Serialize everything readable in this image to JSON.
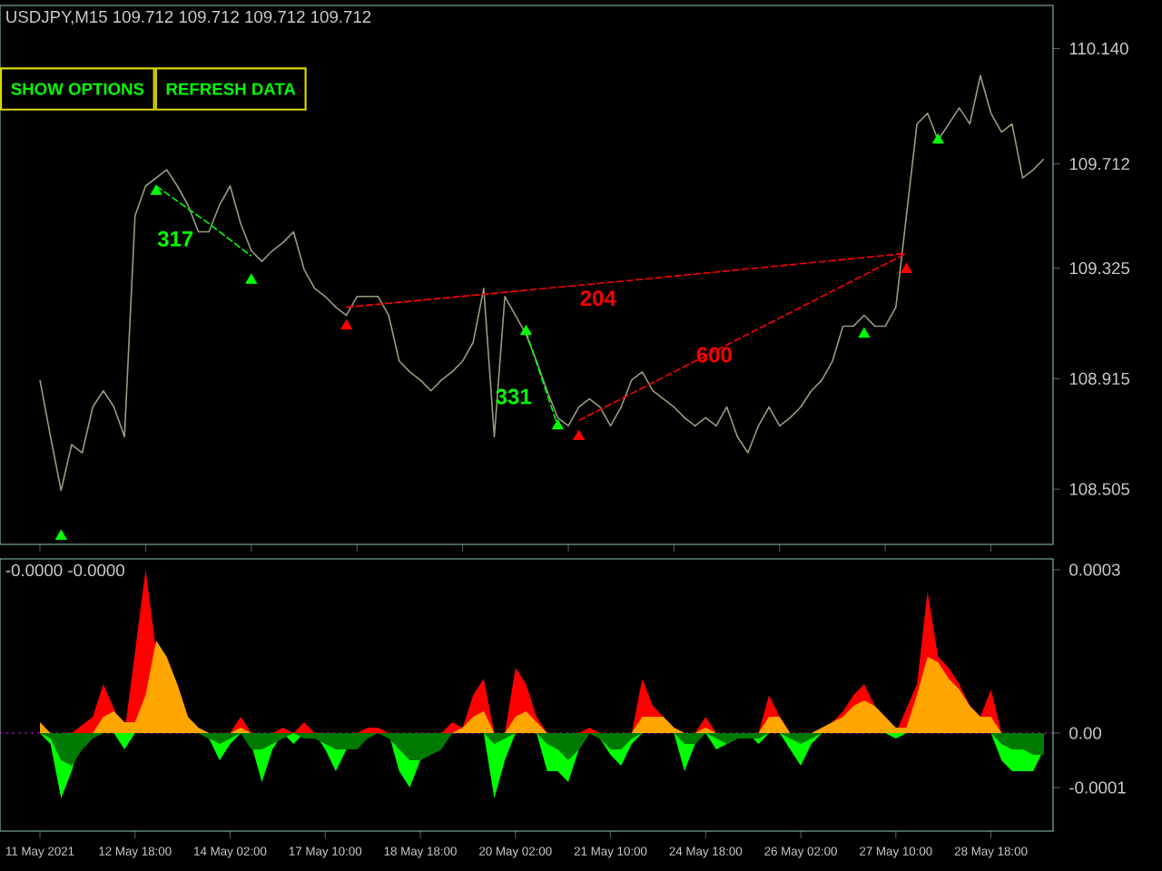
{
  "chart_data": [
    {
      "type": "line",
      "title": "USDJPY,M15  109.712 109.712 109.712 109.712",
      "tick_labels": "y",
      "categories": [
        null,
        null,
        null,
        null,
        null,
        null,
        null,
        null,
        null,
        null,
        null,
        null,
        null,
        null,
        null,
        null,
        null,
        null,
        null,
        null,
        null,
        null,
        null,
        null,
        null,
        null,
        null,
        null,
        null,
        null,
        null,
        null,
        null,
        null,
        null,
        null,
        null,
        null,
        null,
        null,
        null,
        null,
        null,
        null,
        null,
        null,
        null,
        null,
        null,
        null,
        null,
        null,
        null,
        null,
        null,
        null,
        null,
        null,
        null,
        null,
        null,
        null,
        null,
        null,
        null,
        null,
        null,
        null,
        null,
        null,
        null,
        null,
        null,
        null,
        null,
        null,
        null,
        null,
        null,
        null,
        null,
        null,
        null,
        null,
        null,
        null,
        null,
        null,
        null,
        null,
        null,
        null,
        null,
        null,
        null,
        null
      ],
      "ylim": [
        108.3,
        110.3
      ],
      "yticks": [
        108.505,
        108.915,
        109.325,
        109.712,
        {
          "value": 110.14,
          "label": "110.140"
        }
      ],
      "series": [
        {
          "color": "#9a9c7e",
          "values": [
            108.91,
            108.7,
            108.5,
            108.67,
            108.64,
            108.81,
            108.87,
            108.81,
            108.7,
            109.52,
            109.63,
            109.66,
            109.69,
            109.63,
            109.56,
            109.46,
            109.46,
            109.56,
            109.63,
            109.49,
            109.39,
            109.35,
            109.39,
            109.42,
            109.46,
            109.32,
            109.25,
            109.22,
            109.18,
            109.15,
            109.22,
            109.22,
            109.22,
            109.15,
            108.98,
            108.94,
            108.91,
            108.87,
            108.91,
            108.94,
            108.98,
            109.05,
            109.25,
            108.7,
            109.22,
            109.15,
            109.08,
            108.98,
            108.87,
            108.77,
            108.74,
            108.81,
            108.84,
            108.81,
            108.74,
            108.81,
            108.91,
            108.94,
            108.87,
            108.84,
            108.81,
            108.77,
            108.74,
            108.77,
            108.74,
            108.81,
            108.7,
            108.64,
            108.74,
            108.81,
            108.74,
            108.77,
            108.81,
            108.87,
            108.91,
            108.98,
            109.11,
            109.11,
            109.15,
            109.11,
            109.11,
            109.18,
            109.52,
            109.86,
            109.9,
            109.8,
            109.86,
            109.92,
            109.86,
            110.04,
            109.9,
            109.83,
            109.86,
            109.66,
            109.69,
            109.73
          ]
        },
        {
          "name": "204",
          "color": "#ff0000",
          "line_style": "dashed",
          "values": [
            null,
            null,
            null,
            null,
            null,
            null,
            null,
            null,
            null,
            null,
            null,
            null,
            null,
            null,
            null,
            null,
            null,
            null,
            null,
            null,
            null,
            null,
            null,
            null,
            null,
            null,
            null,
            null,
            null,
            109.18,
            null,
            null,
            null,
            null,
            null,
            null,
            null,
            null,
            null,
            null,
            null,
            null,
            null,
            null,
            null,
            null,
            null,
            null,
            null,
            null,
            null,
            null,
            null,
            null,
            null,
            null,
            109.28,
            null,
            null,
            null,
            null,
            null,
            null,
            null,
            null,
            null,
            null,
            null,
            null,
            null,
            null,
            null,
            null,
            null,
            null,
            null,
            null,
            null,
            null,
            null,
            null,
            null,
            109.38,
            null,
            null,
            null,
            null,
            null,
            null,
            null,
            null,
            null,
            null,
            null,
            null,
            null
          ]
        },
        {
          "name": "600",
          "color": "#ff0000",
          "line_style": "dashed",
          "values": [
            null,
            null,
            null,
            null,
            null,
            null,
            null,
            null,
            null,
            null,
            null,
            null,
            null,
            null,
            null,
            null,
            null,
            null,
            null,
            null,
            null,
            null,
            null,
            null,
            null,
            null,
            null,
            null,
            null,
            null,
            null,
            null,
            null,
            null,
            null,
            null,
            null,
            null,
            null,
            null,
            null,
            null,
            null,
            null,
            null,
            null,
            null,
            null,
            null,
            null,
            null,
            108.76,
            null,
            null,
            null,
            null,
            null,
            null,
            null,
            null,
            null,
            null,
            null,
            null,
            null,
            null,
            109.06,
            null,
            null,
            null,
            null,
            null,
            null,
            null,
            null,
            null,
            null,
            null,
            null,
            null,
            null,
            null,
            109.38,
            null,
            null,
            null,
            null,
            null,
            null,
            null,
            null,
            null,
            null,
            null,
            null,
            null
          ]
        },
        {
          "name": "317",
          "color": "#00ff00",
          "line_style": "dashed",
          "values": [
            null,
            null,
            null,
            null,
            null,
            null,
            null,
            null,
            null,
            null,
            null,
            109.63,
            null,
            null,
            null,
            null,
            109.49,
            null,
            null,
            null,
            109.37,
            null,
            null,
            null,
            null,
            null,
            null,
            null,
            null,
            null,
            null,
            null,
            null,
            null,
            null,
            null,
            null,
            null,
            null,
            null,
            null,
            null,
            null,
            null,
            null,
            null,
            null,
            null,
            null,
            null,
            null,
            null,
            null,
            null,
            null,
            null,
            null,
            null,
            null,
            null,
            null,
            null,
            null,
            null,
            null,
            null,
            null,
            null,
            null,
            null,
            null,
            null,
            null,
            null,
            null,
            null,
            null,
            null,
            null,
            null,
            null,
            null,
            null,
            null,
            null,
            null,
            null,
            null,
            null,
            null,
            null,
            null,
            null,
            null,
            null,
            null
          ]
        },
        {
          "name": "331",
          "color": "#00ff00",
          "line_style": "dashed",
          "values": [
            null,
            null,
            null,
            null,
            null,
            null,
            null,
            null,
            null,
            null,
            null,
            null,
            null,
            null,
            null,
            null,
            null,
            null,
            null,
            null,
            null,
            null,
            null,
            null,
            null,
            null,
            null,
            null,
            null,
            null,
            null,
            null,
            null,
            null,
            null,
            null,
            null,
            null,
            null,
            null,
            null,
            null,
            null,
            null,
            null,
            null,
            109.09,
            null,
            null,
            108.74,
            null,
            null,
            null,
            null,
            null,
            null,
            null,
            null,
            null,
            null,
            null,
            null,
            null,
            null,
            null,
            null,
            null,
            null,
            null,
            null,
            null,
            null,
            null,
            null,
            null,
            null,
            null,
            null,
            null,
            null,
            null,
            null,
            null,
            null,
            null,
            null,
            null,
            null,
            null,
            null,
            null,
            null,
            null,
            null,
            null,
            null
          ]
        },
        {
          "type": "scatter",
          "marker": "triangle",
          "color": "#ff0000",
          "values": [
            null,
            null,
            null,
            null,
            null,
            null,
            null,
            null,
            null,
            null,
            null,
            null,
            null,
            null,
            null,
            null,
            null,
            null,
            null,
            null,
            null,
            null,
            null,
            null,
            null,
            null,
            null,
            null,
            null,
            109.11,
            null,
            null,
            null,
            null,
            null,
            null,
            null,
            null,
            null,
            null,
            null,
            null,
            null,
            null,
            null,
            null,
            null,
            null,
            null,
            null,
            null,
            108.7,
            null,
            null,
            null,
            null,
            null,
            null,
            null,
            null,
            null,
            null,
            null,
            null,
            null,
            null,
            null,
            null,
            null,
            null,
            null,
            null,
            null,
            null,
            null,
            null,
            null,
            null,
            null,
            null,
            null,
            null,
            109.32,
            null,
            null,
            null,
            null,
            null,
            null,
            null,
            null,
            null,
            null,
            null,
            null,
            null
          ]
        },
        {
          "type": "scatter",
          "marker": "triangle",
          "color": "#00ff00",
          "values": [
            null,
            null,
            null,
            null,
            null,
            null,
            null,
            null,
            null,
            null,
            null,
            109.61,
            null,
            null,
            null,
            null,
            null,
            null,
            null,
            null,
            null,
            null,
            null,
            null,
            null,
            null,
            null,
            null,
            null,
            null,
            null,
            null,
            null,
            null,
            null,
            null,
            null,
            null,
            null,
            null,
            null,
            null,
            null,
            null,
            null,
            null,
            109.09,
            null,
            null,
            null,
            null,
            null,
            null,
            null,
            null,
            null,
            null,
            null,
            null,
            null,
            null,
            null,
            null,
            null,
            null,
            null,
            null,
            null,
            null,
            null,
            null,
            null,
            null,
            null,
            null,
            null,
            null,
            null,
            109.08,
            null,
            null,
            null,
            null,
            null,
            null,
            109.8,
            null,
            null,
            null,
            null,
            null,
            null,
            null,
            null,
            null,
            null
          ]
        },
        {
          "type": "scatter",
          "marker": "triangle",
          "color": "#00ff00",
          "values": [
            null,
            null,
            108.33,
            null,
            null,
            null,
            null,
            null,
            null,
            null,
            null,
            null,
            null,
            null,
            null,
            null,
            null,
            null,
            null,
            null,
            109.28,
            null,
            null,
            null,
            null,
            null,
            null,
            null,
            null,
            null,
            null,
            null,
            null,
            null,
            null,
            null,
            null,
            null,
            null,
            null,
            null,
            null,
            null,
            null,
            null,
            null,
            null,
            null,
            null,
            108.74,
            null,
            null,
            null,
            null,
            null,
            null,
            null,
            null,
            null,
            null,
            null,
            null,
            null,
            null,
            null,
            null,
            null,
            null,
            null,
            null,
            null,
            null,
            null,
            null,
            null,
            null,
            null,
            null,
            null,
            null,
            null,
            null,
            null,
            null,
            null,
            null,
            null,
            null,
            null,
            null,
            null,
            null,
            null,
            null,
            null,
            null
          ]
        }
      ],
      "annotations": [
        "SHOW OPTIONS",
        "REFRESH DATA"
      ]
    },
    {
      "type": "area",
      "title": "-0.0000 -0.0000",
      "categories": [
        "11 May 2021",
        null,
        null,
        null,
        null,
        null,
        null,
        null,
        null,
        "12 May 18:00",
        null,
        null,
        null,
        null,
        null,
        null,
        null,
        null,
        "14 May 02:00",
        null,
        null,
        null,
        null,
        null,
        null,
        null,
        null,
        "17 May 10:00",
        null,
        null,
        null,
        null,
        null,
        null,
        null,
        null,
        "18 May 18:00",
        null,
        null,
        null,
        null,
        null,
        null,
        null,
        null,
        "20 May 02:00",
        null,
        null,
        null,
        null,
        null,
        null,
        null,
        null,
        "21 May 10:00",
        null,
        null,
        null,
        null,
        null,
        null,
        null,
        null,
        "24 May 18:00",
        null,
        null,
        null,
        null,
        null,
        null,
        null,
        null,
        "26 May 02:00",
        null,
        null,
        null,
        null,
        null,
        null,
        null,
        null,
        "27 May 10:00",
        null,
        null,
        null,
        null,
        null,
        null,
        null,
        null,
        "28 May 18:00",
        null,
        null,
        null,
        null,
        null
      ],
      "ylim": [
        -0.00018,
        0.00032
      ],
      "yticks": [
        0.0003,
        {
          "value": 0,
          "label": "0.00"
        },
        -0.0001
      ],
      "ref_lines": [
        {
          "axis": "y",
          "value": 0,
          "color": "#ff00ff",
          "line_style": "dotted"
        }
      ],
      "series": [
        {
          "color": "#ff0000",
          "values": [
            1e-05,
            0,
            0,
            0,
            null,
            3e-05,
            9e-05,
            null,
            0,
            null,
            0.0003,
            0.00015,
            null,
            9e-05,
            3e-05,
            0,
            0,
            0,
            0,
            3e-05,
            0,
            0,
            0,
            1e-05,
            0,
            2e-05,
            0,
            0,
            0,
            0,
            0,
            1e-05,
            1e-05,
            0,
            0,
            0,
            0,
            0,
            0,
            2e-05,
            1e-05,
            7e-05,
            0.0001,
            0,
            0,
            0.00012,
            9e-05,
            3e-05,
            0,
            0,
            0,
            0,
            1e-05,
            0,
            0,
            0,
            0,
            0.0001,
            5e-05,
            3e-05,
            1e-05,
            0,
            0,
            3e-05,
            0,
            0,
            0,
            0,
            0,
            7e-05,
            3e-05,
            0,
            0,
            0,
            0,
            null,
            4e-05,
            7e-05,
            9e-05,
            5e-05,
            null,
            0,
            null,
            9e-05,
            0.00026,
            0.00014,
            0.00012,
            9e-05,
            5e-05,
            3e-05,
            8e-05,
            0,
            0,
            0,
            0,
            0
          ]
        },
        {
          "color": "#ffa500",
          "values": [
            2e-05,
            0,
            0,
            0,
            0,
            0,
            3e-05,
            4e-05,
            2e-05,
            2e-05,
            7e-05,
            0.00017,
            0.00014,
            9e-05,
            3e-05,
            1e-05,
            0,
            0,
            0,
            1e-05,
            0,
            0,
            0,
            0,
            0,
            0,
            0,
            0,
            0,
            0,
            0,
            0,
            0,
            0,
            0,
            0,
            0,
            0,
            0,
            0,
            1e-05,
            3e-05,
            4e-05,
            0,
            0,
            3e-05,
            4e-05,
            2e-05,
            0,
            0,
            0,
            0,
            0,
            0,
            0,
            0,
            0,
            3e-05,
            3e-05,
            3e-05,
            1e-05,
            0,
            0,
            1e-05,
            0,
            0,
            0,
            0,
            0,
            3e-05,
            3e-05,
            0,
            0,
            0,
            1e-05,
            2e-05,
            3e-05,
            5e-05,
            6e-05,
            5e-05,
            3e-05,
            1e-05,
            1e-05,
            7e-05,
            0.00014,
            0.00013,
            0.0001,
            8e-05,
            5e-05,
            3e-05,
            3e-05,
            0,
            0,
            0,
            0,
            0
          ]
        },
        {
          "color": "#00ff00",
          "values": [
            0,
            -2e-05,
            -0.00012,
            -7e-05,
            0,
            0,
            0,
            0,
            -3e-05,
            0,
            0,
            0,
            0,
            0,
            0,
            0,
            -1e-05,
            -5e-05,
            -2e-05,
            0,
            -2e-05,
            -9e-05,
            -3e-05,
            0,
            -2e-05,
            0,
            0,
            -3e-05,
            -7e-05,
            -3e-05,
            -2e-05,
            0,
            0,
            0,
            -7e-05,
            -0.0001,
            -5e-05,
            null,
            -2e-05,
            0,
            0,
            0,
            0,
            -0.00012,
            -5e-05,
            0,
            0,
            0,
            -7e-05,
            -7e-05,
            -9e-05,
            -3e-05,
            0,
            -1e-05,
            -4e-05,
            -6e-05,
            -2e-05,
            0,
            0,
            0,
            0,
            -7e-05,
            -2e-05,
            0,
            -3e-05,
            -2e-05,
            -1e-05,
            0,
            -2e-05,
            0,
            0,
            -3e-05,
            -6e-05,
            -2e-05,
            0,
            0,
            0,
            0,
            0,
            0,
            0,
            -1e-05,
            0,
            0,
            0,
            0,
            0,
            0,
            0,
            0,
            0,
            -5e-05,
            -7e-05,
            null,
            -7e-05,
            -3e-05
          ]
        },
        {
          "color": "#007a00",
          "values": [
            0,
            -1e-05,
            -5e-05,
            -6e-05,
            -3e-05,
            -1e-05,
            0,
            0,
            0,
            0,
            0,
            0,
            0,
            0,
            0,
            0,
            -1e-05,
            -2e-05,
            -1e-05,
            0,
            -3e-05,
            -3e-05,
            -2e-05,
            -1e-05,
            0,
            -1e-05,
            -1e-05,
            -2e-05,
            -3e-05,
            -3e-05,
            -3e-05,
            -1e-05,
            0,
            -1e-05,
            -3e-05,
            -5e-05,
            -5e-05,
            -4e-05,
            -3e-05,
            0,
            0,
            0,
            0,
            -2e-05,
            -1e-05,
            0,
            0,
            0,
            -2e-05,
            -3e-05,
            -5e-05,
            -3e-05,
            0,
            -1e-05,
            -3e-05,
            -3e-05,
            -1e-05,
            0,
            0,
            0,
            0,
            -2e-05,
            -2e-05,
            0,
            -1e-05,
            -2e-05,
            -1e-05,
            -1e-05,
            -1e-05,
            0,
            0,
            -1e-05,
            -2e-05,
            -1e-05,
            0,
            0,
            0,
            0,
            0,
            0,
            0,
            0,
            0,
            0,
            0,
            0,
            0,
            0,
            0,
            0,
            0,
            -2e-05,
            -3e-05,
            -3e-05,
            -4e-05,
            -4e-05
          ]
        }
      ]
    }
  ]
}
